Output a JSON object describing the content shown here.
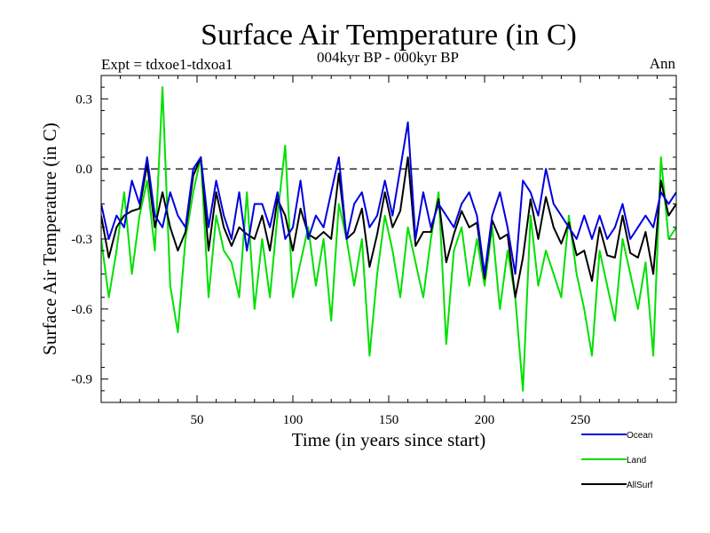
{
  "chart_data": {
    "type": "line",
    "title": "Surface Air Temperature (in C)",
    "subtitle_left": "Expt = tdxoe1-tdxoa1",
    "subtitle_center": "004kyr BP - 000kyr BP",
    "subtitle_right": "Ann",
    "xlabel": "Time (in years since start)",
    "ylabel": "Surface Air Temperature (in C)",
    "xlim": [
      0,
      300
    ],
    "ylim": [
      -1.0,
      0.4
    ],
    "xticks": [
      50,
      100,
      150,
      200,
      250
    ],
    "xtick_labels": [
      "50",
      "100",
      "150",
      "200",
      "250"
    ],
    "yticks": [
      0.3,
      0.0,
      -0.3,
      -0.6,
      -0.9
    ],
    "ytick_labels": [
      "0.3",
      "0.0",
      "-0.3",
      "-0.6",
      "-0.9"
    ],
    "reference_line": 0.0,
    "legend_position": "bottom-right",
    "series": [
      {
        "name": "Ocean",
        "color": "#0000e0",
        "x": [
          0,
          4,
          8,
          12,
          16,
          20,
          24,
          28,
          32,
          36,
          40,
          44,
          48,
          52,
          56,
          60,
          64,
          68,
          72,
          76,
          80,
          84,
          88,
          92,
          96,
          100,
          104,
          108,
          112,
          116,
          120,
          124,
          128,
          132,
          136,
          140,
          144,
          148,
          152,
          156,
          160,
          164,
          168,
          172,
          176,
          180,
          184,
          188,
          192,
          196,
          200,
          204,
          208,
          212,
          216,
          220,
          224,
          228,
          232,
          236,
          240,
          244,
          248,
          252,
          256,
          260,
          264,
          268,
          272,
          276,
          280,
          284,
          288,
          292,
          296,
          300
        ],
        "values": [
          -0.15,
          -0.3,
          -0.2,
          -0.25,
          -0.05,
          -0.15,
          0.05,
          -0.2,
          -0.25,
          -0.1,
          -0.2,
          -0.25,
          0.0,
          0.05,
          -0.25,
          -0.05,
          -0.2,
          -0.3,
          -0.1,
          -0.35,
          -0.15,
          -0.15,
          -0.25,
          -0.1,
          -0.3,
          -0.25,
          -0.05,
          -0.3,
          -0.2,
          -0.25,
          -0.1,
          0.05,
          -0.3,
          -0.15,
          -0.1,
          -0.25,
          -0.2,
          -0.05,
          -0.2,
          0.0,
          0.2,
          -0.3,
          -0.1,
          -0.25,
          -0.15,
          -0.2,
          -0.25,
          -0.15,
          -0.1,
          -0.2,
          -0.45,
          -0.2,
          -0.1,
          -0.25,
          -0.45,
          -0.05,
          -0.1,
          -0.2,
          0.0,
          -0.15,
          -0.2,
          -0.25,
          -0.3,
          -0.2,
          -0.3,
          -0.2,
          -0.3,
          -0.25,
          -0.15,
          -0.3,
          -0.25,
          -0.2,
          -0.25,
          -0.1,
          -0.15,
          -0.1
        ]
      },
      {
        "name": "Land",
        "color": "#00e000",
        "x": [
          0,
          4,
          8,
          12,
          16,
          20,
          24,
          28,
          32,
          36,
          40,
          44,
          48,
          52,
          56,
          60,
          64,
          68,
          72,
          76,
          80,
          84,
          88,
          92,
          96,
          100,
          104,
          108,
          112,
          116,
          120,
          124,
          128,
          132,
          136,
          140,
          144,
          148,
          152,
          156,
          160,
          164,
          168,
          172,
          176,
          180,
          184,
          188,
          192,
          196,
          200,
          204,
          208,
          212,
          216,
          220,
          224,
          228,
          232,
          236,
          240,
          244,
          248,
          252,
          256,
          260,
          264,
          268,
          272,
          276,
          280,
          284,
          288,
          292,
          296,
          300
        ],
        "values": [
          -0.3,
          -0.55,
          -0.35,
          -0.1,
          -0.45,
          -0.2,
          -0.05,
          -0.35,
          0.35,
          -0.5,
          -0.7,
          -0.3,
          -0.1,
          0.05,
          -0.55,
          -0.2,
          -0.35,
          -0.4,
          -0.55,
          -0.1,
          -0.6,
          -0.3,
          -0.55,
          -0.2,
          0.1,
          -0.55,
          -0.4,
          -0.25,
          -0.5,
          -0.3,
          -0.65,
          -0.15,
          -0.3,
          -0.5,
          -0.3,
          -0.8,
          -0.45,
          -0.2,
          -0.35,
          -0.55,
          -0.25,
          -0.4,
          -0.55,
          -0.3,
          -0.1,
          -0.75,
          -0.35,
          -0.25,
          -0.5,
          -0.3,
          -0.5,
          -0.25,
          -0.6,
          -0.35,
          -0.55,
          -0.95,
          -0.2,
          -0.5,
          -0.35,
          -0.45,
          -0.55,
          -0.2,
          -0.45,
          -0.6,
          -0.8,
          -0.35,
          -0.5,
          -0.65,
          -0.3,
          -0.45,
          -0.6,
          -0.4,
          -0.8,
          0.05,
          -0.3,
          -0.25
        ]
      },
      {
        "name": "AllSurf",
        "color": "#000000",
        "x": [
          0,
          4,
          8,
          12,
          16,
          20,
          24,
          28,
          32,
          36,
          40,
          44,
          48,
          52,
          56,
          60,
          64,
          68,
          72,
          76,
          80,
          84,
          88,
          92,
          96,
          100,
          104,
          108,
          112,
          116,
          120,
          124,
          128,
          132,
          136,
          140,
          144,
          148,
          152,
          156,
          160,
          164,
          168,
          172,
          176,
          180,
          184,
          188,
          192,
          196,
          200,
          204,
          208,
          212,
          216,
          220,
          224,
          228,
          232,
          236,
          240,
          244,
          248,
          252,
          256,
          260,
          264,
          268,
          272,
          276,
          280,
          284,
          288,
          292,
          296,
          300
        ],
        "values": [
          -0.2,
          -0.38,
          -0.25,
          -0.2,
          -0.18,
          -0.17,
          0.02,
          -0.25,
          -0.1,
          -0.25,
          -0.35,
          -0.27,
          -0.03,
          0.05,
          -0.35,
          -0.1,
          -0.25,
          -0.33,
          -0.25,
          -0.28,
          -0.3,
          -0.2,
          -0.35,
          -0.13,
          -0.2,
          -0.35,
          -0.17,
          -0.28,
          -0.3,
          -0.27,
          -0.3,
          -0.02,
          -0.3,
          -0.27,
          -0.17,
          -0.42,
          -0.28,
          -0.1,
          -0.25,
          -0.18,
          0.05,
          -0.33,
          -0.27,
          -0.27,
          -0.13,
          -0.4,
          -0.28,
          -0.18,
          -0.25,
          -0.23,
          -0.47,
          -0.22,
          -0.3,
          -0.28,
          -0.55,
          -0.38,
          -0.13,
          -0.3,
          -0.12,
          -0.25,
          -0.32,
          -0.23,
          -0.37,
          -0.35,
          -0.48,
          -0.25,
          -0.37,
          -0.38,
          -0.2,
          -0.36,
          -0.38,
          -0.27,
          -0.45,
          -0.05,
          -0.2,
          -0.15
        ]
      }
    ]
  }
}
